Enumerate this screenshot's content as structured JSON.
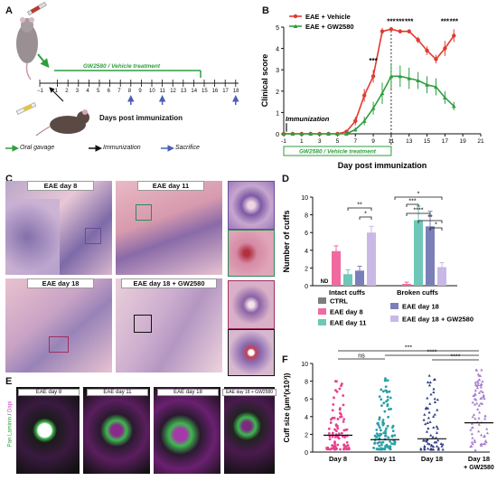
{
  "panels": {
    "a": "A",
    "b": "B",
    "c": "C",
    "d": "D",
    "e": "E",
    "f": "F"
  },
  "panel_a": {
    "treatment_label": "GW2580 / Vehicle treatment",
    "days": [
      "−1",
      "1",
      "2",
      "3",
      "4",
      "5",
      "6",
      "7",
      "8",
      "9",
      "10",
      "11",
      "12",
      "13",
      "14",
      "15",
      "16",
      "17",
      "18"
    ],
    "axis_label": "Days post immunization",
    "legend": {
      "oral": "Oral gavage",
      "imm": "Immunization",
      "sac": "Sacrifice"
    },
    "sacrifice_days": [
      "8",
      "11",
      "18"
    ],
    "colors": {
      "green": "#2e9e3e",
      "blue": "#4a5fb0",
      "black": "#111111"
    }
  },
  "panel_c": {
    "titles": [
      "EAE day 8",
      "EAE day 11",
      "EAE day 18",
      "EAE day 18 + GW2580"
    ]
  },
  "panel_e": {
    "titles": [
      "EAE day 8",
      "EAE day 11",
      "EAE day 18",
      "EAE day 18 + GW2580"
    ],
    "side_label_a": "Pan Laminin",
    "side_label_b": "Dapi"
  },
  "chart_data": [
    {
      "id": "B",
      "type": "line",
      "xlabel": "Day post immunization",
      "ylabel": "Clinical score",
      "xlim": [
        -1,
        21
      ],
      "ylim": [
        0,
        5
      ],
      "xticks": [
        -1,
        1,
        3,
        5,
        7,
        9,
        11,
        13,
        15,
        17,
        19,
        21
      ],
      "yticks": [
        0,
        1,
        2,
        3,
        4,
        5
      ],
      "annotation_immunization": "Immunization",
      "treatment_bar_label": "GW2580 / Vehicle treatment",
      "significance": [
        {
          "x": 9,
          "label": "***"
        },
        {
          "x": 11,
          "label": "***"
        },
        {
          "x": 12,
          "label": "***"
        },
        {
          "x": 13,
          "label": "***"
        },
        {
          "x": 17,
          "label": "***"
        },
        {
          "x": 18,
          "label": "***"
        }
      ],
      "series": [
        {
          "name": "EAE + Vehicle",
          "color": "#e03a2f",
          "x": [
            -1,
            0,
            1,
            2,
            3,
            4,
            5,
            6,
            7,
            8,
            9,
            10,
            11,
            12,
            13,
            14,
            15,
            16,
            17,
            18
          ],
          "y": [
            0,
            0,
            0,
            0,
            0,
            0,
            0,
            0.1,
            0.6,
            1.8,
            2.7,
            4.8,
            4.9,
            4.8,
            4.8,
            4.4,
            3.9,
            3.5,
            4.0,
            4.6
          ],
          "err": [
            0,
            0,
            0,
            0,
            0,
            0,
            0,
            0.1,
            0.2,
            0.3,
            0.3,
            0.15,
            0.1,
            0.1,
            0.1,
            0.15,
            0.2,
            0.2,
            0.35,
            0.3
          ]
        },
        {
          "name": "EAE + GW2580",
          "color": "#2e9e3e",
          "x": [
            -1,
            0,
            1,
            2,
            3,
            4,
            5,
            6,
            7,
            8,
            9,
            10,
            11,
            12,
            13,
            14,
            15,
            16,
            17,
            18
          ],
          "y": [
            0,
            0,
            0,
            0,
            0,
            0,
            0,
            0,
            0.2,
            0.6,
            1.2,
            1.9,
            2.7,
            2.7,
            2.6,
            2.5,
            2.3,
            2.2,
            1.7,
            1.3
          ],
          "err": [
            0,
            0,
            0,
            0,
            0,
            0,
            0,
            0,
            0.1,
            0.2,
            0.3,
            0.5,
            0.6,
            0.5,
            0.5,
            0.4,
            0.4,
            0.4,
            0.3,
            0.2
          ]
        }
      ]
    },
    {
      "id": "D",
      "type": "bar",
      "ylabel": "Number of cuffs",
      "ylim": [
        0,
        10
      ],
      "yticks": [
        0,
        2,
        4,
        6,
        8,
        10
      ],
      "groups": [
        "Intact cuffs",
        "Broken cuffs"
      ],
      "nd_label": "ND",
      "series": [
        {
          "name": "CTRL",
          "color": "#7d7d7d",
          "values": [
            null,
            0
          ]
        },
        {
          "name": "EAE day 8",
          "color": "#f06aa0",
          "values": [
            3.9,
            0.2
          ]
        },
        {
          "name": "EAE day 11",
          "color": "#6ec7b8",
          "values": [
            1.3,
            7.4
          ]
        },
        {
          "name": "EAE day 18",
          "color": "#7b7fb8",
          "values": [
            1.7,
            6.7
          ]
        },
        {
          "name": "EAE day 18 + GW2580",
          "color": "#c9b8e6",
          "values": [
            6.0,
            2.1
          ]
        }
      ],
      "errors": [
        [
          null,
          0.6,
          0.5,
          0.5,
          0.7
        ],
        [
          0,
          0.2,
          1.6,
          1.7,
          0.5
        ]
      ],
      "significance": [
        "**",
        "*",
        "*",
        "***",
        "****",
        "**",
        "*"
      ]
    },
    {
      "id": "F",
      "type": "scatter",
      "ylabel": "Cuff size (μm²(x10³))",
      "ylim": [
        0,
        10
      ],
      "yticks": [
        0,
        2,
        4,
        6,
        8,
        10
      ],
      "categories": [
        "Day 8",
        "Day 11",
        "Day 18",
        "Day 18 + GW2580"
      ],
      "medians": [
        1.9,
        1.4,
        1.5,
        3.3
      ],
      "colors": [
        "#e8408e",
        "#2aa0a6",
        "#2f3a86",
        "#a67ed0"
      ],
      "significance": [
        "ns",
        "***",
        "****",
        "****"
      ]
    }
  ]
}
